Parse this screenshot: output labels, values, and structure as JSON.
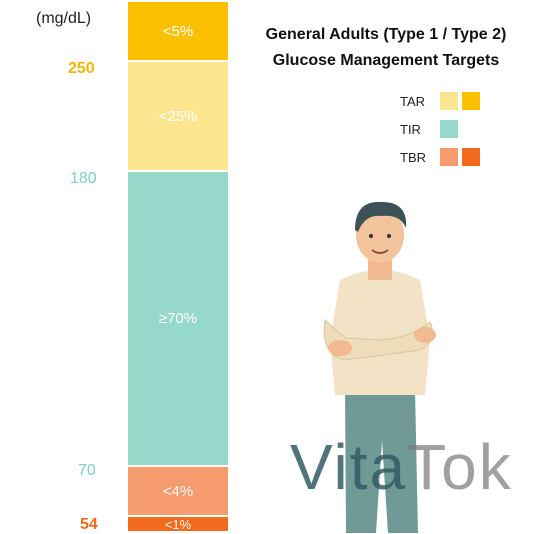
{
  "chart_data": {
    "type": "stacked-bar",
    "title_line1": "General Adults (Type 1 / Type 2)",
    "title_line2": "Glucose Management Targets",
    "unit": "(mg/dL)",
    "ticks": [
      {
        "label": "250",
        "color": "#f2b705"
      },
      {
        "label": "180",
        "color": "#7fd1c3"
      },
      {
        "label": "70",
        "color": "#7fd1c3"
      },
      {
        "label": "54",
        "color": "#f26a1b"
      }
    ],
    "segments": [
      {
        "label": "<5%",
        "color": "#fbc100"
      },
      {
        "label": "<25%",
        "color": "#fde58f"
      },
      {
        "label": "≥70%",
        "color": "#96d8ca"
      },
      {
        "label": "<4%",
        "color": "#f59b6d"
      },
      {
        "label": "<1%",
        "color": "#f26a1b"
      }
    ],
    "legend": [
      {
        "name": "TAR",
        "colors": [
          "#fde58f",
          "#fbc100"
        ]
      },
      {
        "name": "TIR",
        "colors": [
          "#96d8ca"
        ]
      },
      {
        "name": "TBR",
        "colors": [
          "#f59b6d",
          "#f26a1b"
        ]
      }
    ]
  },
  "watermark": {
    "part1": "Vita",
    "part2": "Tok"
  },
  "illustration": {
    "icon": "man-arms-crossed-icon"
  }
}
